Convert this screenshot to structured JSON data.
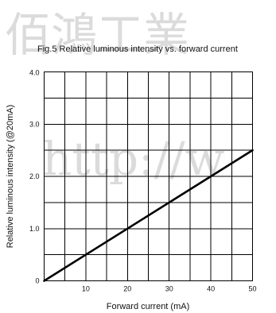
{
  "watermark": {
    "top_text": "佰鴻工業",
    "middle_text": "http://w"
  },
  "chart_data": {
    "type": "line",
    "title": "Fig.5 Relative luminous intensity vs. forward current",
    "xlabel": "Forward current (mA)",
    "ylabel": "Relative luminous intensity (@20mA)",
    "xlim": [
      0,
      50
    ],
    "ylim": [
      0,
      4
    ],
    "x_ticks": [
      {
        "value": 10,
        "label": "10"
      },
      {
        "value": 20,
        "label": "20"
      },
      {
        "value": 30,
        "label": "30"
      },
      {
        "value": 40,
        "label": "40"
      },
      {
        "value": 50,
        "label": "50"
      }
    ],
    "y_ticks": [
      {
        "value": 0,
        "label": "0"
      },
      {
        "value": 1,
        "label": "1.0"
      },
      {
        "value": 2,
        "label": "2.0"
      },
      {
        "value": 3,
        "label": "3.0"
      },
      {
        "value": 4,
        "label": "4.0"
      }
    ],
    "grid_x_step": 5,
    "grid_y_step": 0.5,
    "grid": true,
    "series": [
      {
        "x": [
          0,
          50
        ],
        "y": [
          0,
          2.5
        ]
      }
    ],
    "colors": {
      "line": "#000000",
      "grid": "#000000",
      "watermark": "#cfcfcf"
    }
  }
}
